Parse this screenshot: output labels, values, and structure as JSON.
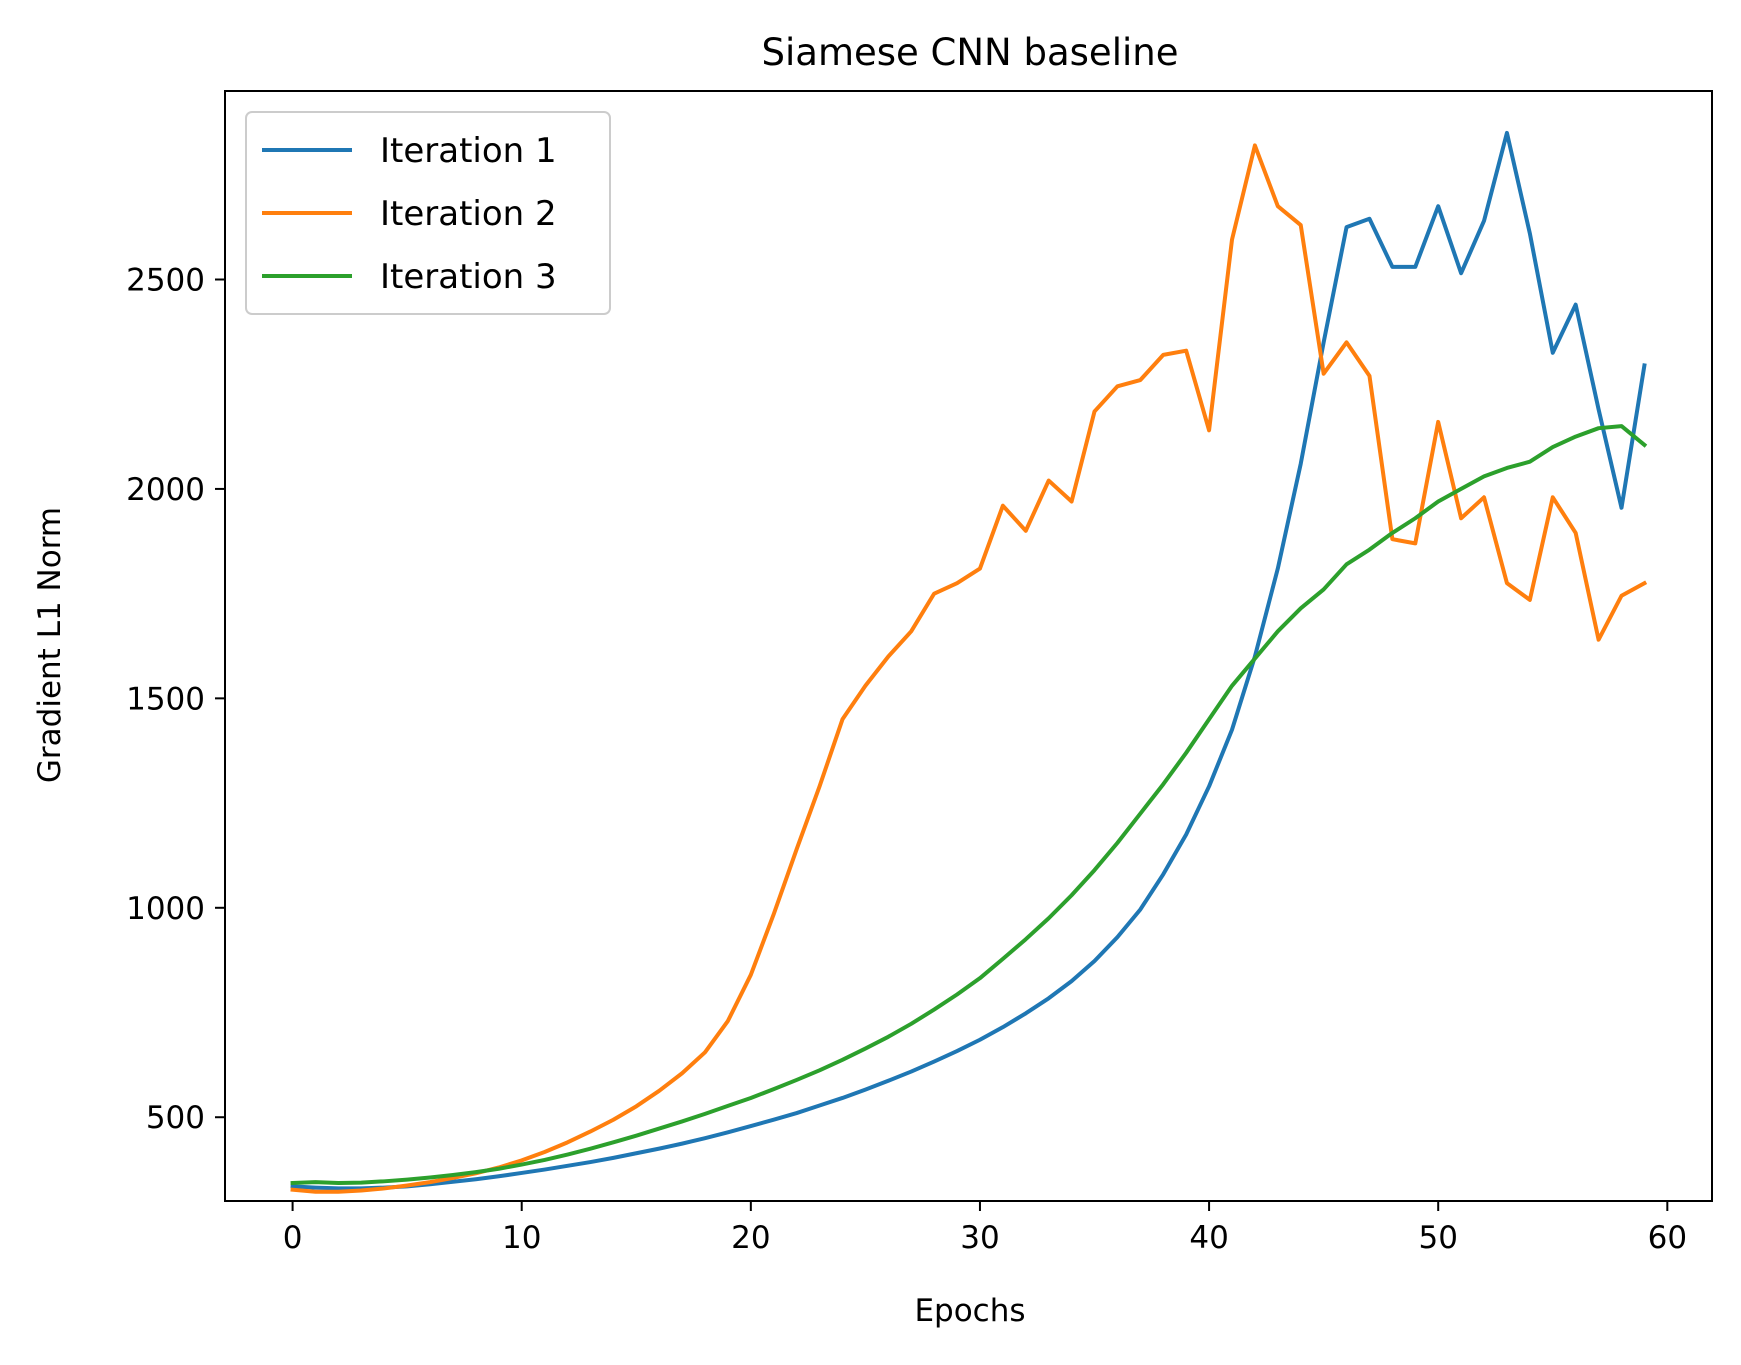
{
  "chart_data": {
    "type": "line",
    "title": "Siamese CNN baseline",
    "xlabel": "Epochs",
    "ylabel": "Gradient L1 Norm",
    "xlim": [
      -2.95,
      61.95
    ],
    "ylim": [
      300,
      2950
    ],
    "x_ticks": [
      0,
      10,
      20,
      30,
      40,
      50,
      60
    ],
    "y_ticks": [
      500,
      1000,
      1500,
      2000,
      2500
    ],
    "grid": false,
    "legend_position": "top-left",
    "x": [
      0,
      1,
      2,
      3,
      4,
      5,
      6,
      7,
      8,
      9,
      10,
      11,
      12,
      13,
      14,
      15,
      16,
      17,
      18,
      19,
      20,
      21,
      22,
      23,
      24,
      25,
      26,
      27,
      28,
      29,
      30,
      31,
      32,
      33,
      34,
      35,
      36,
      37,
      38,
      39,
      40,
      41,
      42,
      43,
      44,
      45,
      46,
      47,
      48,
      49,
      50,
      51,
      52,
      53,
      54,
      55,
      56,
      57,
      58,
      59
    ],
    "series": [
      {
        "name": "Iteration 1",
        "color": "#1f77b4",
        "values": [
          335,
          332,
          330,
          330,
          332,
          335,
          340,
          346,
          352,
          359,
          367,
          375,
          384,
          393,
          403,
          414,
          425,
          437,
          450,
          464,
          479,
          494,
          510,
          528,
          546,
          566,
          587,
          609,
          633,
          658,
          685,
          715,
          748,
          784,
          825,
          873,
          930,
          996,
          1080,
          1175,
          1290,
          1425,
          1600,
          1810,
          2060,
          2350,
          2625,
          2645,
          2530,
          2530,
          2675,
          2515,
          2640,
          2850,
          2610,
          2325,
          2440,
          2190,
          1955,
          2295
        ]
      },
      {
        "name": "Iteration 2",
        "color": "#ff7f0e",
        "values": [
          327,
          322,
          322,
          325,
          330,
          337,
          345,
          355,
          366,
          380,
          397,
          417,
          440,
          466,
          494,
          526,
          563,
          605,
          655,
          730,
          840,
          985,
          1140,
          1290,
          1450,
          1530,
          1600,
          1660,
          1750,
          1775,
          1810,
          1960,
          1900,
          2020,
          1970,
          2185,
          2245,
          2260,
          2320,
          2330,
          2140,
          2595,
          2820,
          2675,
          2630,
          2275,
          2350,
          2270,
          1880,
          1870,
          2160,
          1930,
          1980,
          1775,
          1735,
          1980,
          1895,
          1640,
          1745,
          1775
        ]
      },
      {
        "name": "Iteration 3",
        "color": "#2ca02c",
        "values": [
          343,
          345,
          343,
          344,
          347,
          351,
          356,
          362,
          369,
          377,
          387,
          398,
          411,
          425,
          440,
          456,
          473,
          490,
          508,
          527,
          546,
          567,
          589,
          612,
          637,
          664,
          692,
          723,
          757,
          793,
          832,
          878,
          925,
          975,
          1030,
          1090,
          1155,
          1225,
          1295,
          1370,
          1450,
          1530,
          1595,
          1660,
          1715,
          1760,
          1820,
          1855,
          1895,
          1930,
          1970,
          2000,
          2030,
          2050,
          2065,
          2100,
          2125,
          2145,
          2150,
          2105
        ]
      }
    ]
  }
}
